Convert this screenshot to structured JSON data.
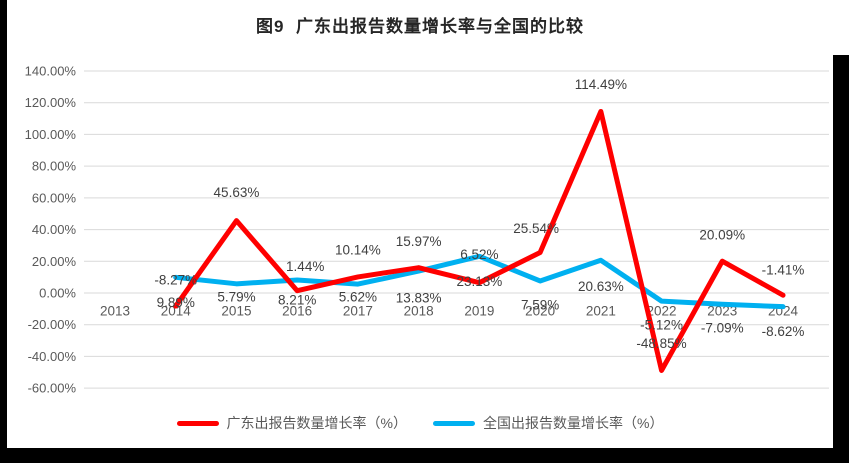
{
  "chart_data": {
    "type": "line",
    "title": "图9  广东出报告数量增长率与全国的比较",
    "categories": [
      "2013",
      "2014",
      "2015",
      "2016",
      "2017",
      "2018",
      "2019",
      "2020",
      "2021",
      "2022",
      "2023",
      "2024"
    ],
    "series": [
      {
        "name": "广东出报告数量增长率（%）",
        "color": "#FF0000",
        "values": [
          null,
          -8.27,
          45.63,
          1.44,
          10.14,
          15.97,
          6.52,
          25.54,
          114.49,
          -48.85,
          20.09,
          -1.41
        ],
        "point_labels": [
          "",
          "-8.27%",
          "45.63%",
          "1.44%",
          "10.14%",
          "15.97%",
          "6.52%",
          "25.54%",
          "114.49%",
          "-48.85%",
          "20.09%",
          "-1.41%"
        ]
      },
      {
        "name": "全国出报告数量增长率（%）",
        "color": "#00B0F0",
        "values": [
          null,
          9.89,
          5.79,
          8.21,
          5.62,
          13.83,
          23.13,
          7.59,
          20.63,
          -5.12,
          -7.09,
          -8.62
        ],
        "point_labels": [
          "",
          "9.89%",
          "5.79%",
          "8.21%",
          "5.62%",
          "13.83%",
          "23.13%",
          "7.59%",
          "20.63%",
          "-5.12%",
          "-7.09%",
          "-8.62%"
        ]
      }
    ],
    "ylim": [
      -60,
      140
    ],
    "ytick_step": 20,
    "ytick_labels": [
      "140.00%",
      "120.00%",
      "100.00%",
      "80.00%",
      "60.00%",
      "40.00%",
      "20.00%",
      "0.00%",
      "-20.00%",
      "-40.00%",
      "-60.00%"
    ],
    "grid": true,
    "legend_position": "bottom",
    "colors": {
      "gridline": "#D9D9D9",
      "axis_text": "#595959",
      "data_label_text": "#404040",
      "title_text": "#262626"
    }
  }
}
